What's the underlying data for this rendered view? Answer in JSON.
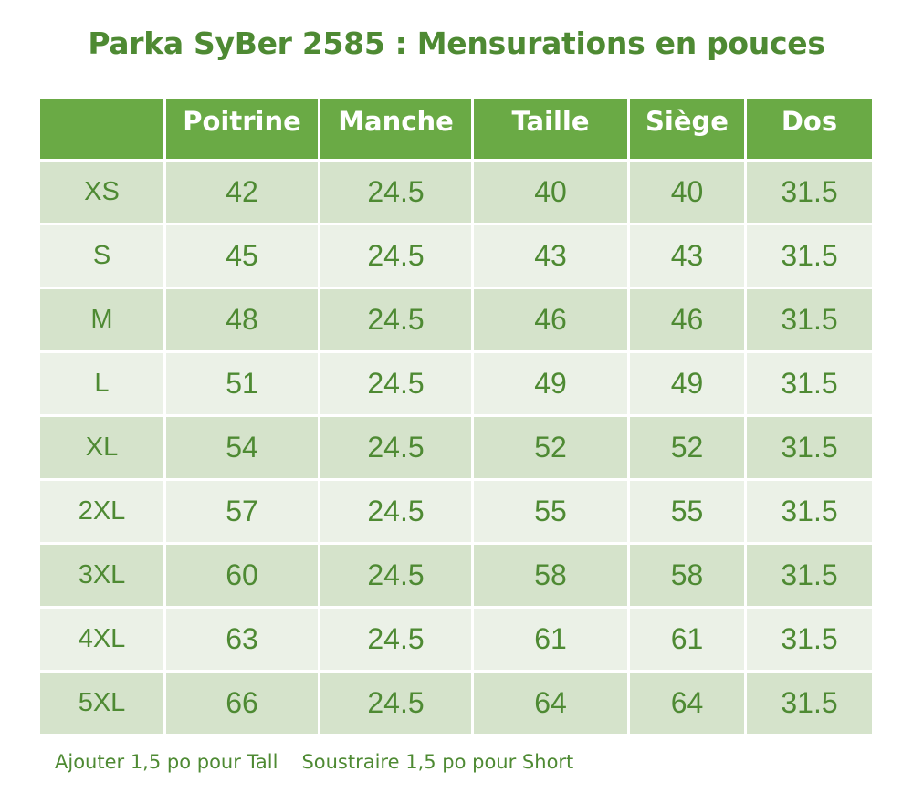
{
  "title": "Parka SyBer 2585 : Mensurations en pouces",
  "table": {
    "headers": [
      "",
      "Poitrine",
      "Manche",
      "Taille",
      "Siège",
      "Dos"
    ],
    "rows": [
      [
        "XS",
        "42",
        "24.5",
        "40",
        "40",
        "31.5"
      ],
      [
        "S",
        "45",
        "24.5",
        "43",
        "43",
        "31.5"
      ],
      [
        "M",
        "48",
        "24.5",
        "46",
        "46",
        "31.5"
      ],
      [
        "L",
        "51",
        "24.5",
        "49",
        "49",
        "31.5"
      ],
      [
        "XL",
        "54",
        "24.5",
        "52",
        "52",
        "31.5"
      ],
      [
        "2XL",
        "57",
        "24.5",
        "55",
        "55",
        "31.5"
      ],
      [
        "3XL",
        "60",
        "24.5",
        "58",
        "58",
        "31.5"
      ],
      [
        "4XL",
        "63",
        "24.5",
        "61",
        "61",
        "31.5"
      ],
      [
        "5XL",
        "66",
        "24.5",
        "64",
        "64",
        "31.5"
      ]
    ]
  },
  "footnotes": [
    "Ajouter 1,5 po pour Tall",
    "Soustraire 1,5 po pour Short"
  ],
  "colors": {
    "accent": "#4e8a33",
    "header_bg": "#6aaa45",
    "row_dark": "#d5e3cb",
    "row_light": "#ebf1e7"
  }
}
